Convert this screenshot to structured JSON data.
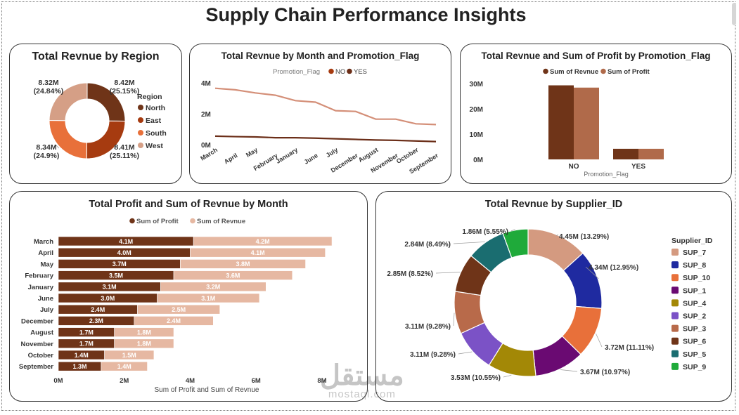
{
  "page": {
    "title": "Supply Chain Performance Insights"
  },
  "colors": {
    "dark": "#6f3418",
    "mid": "#a63b10",
    "orange": "#e8703a",
    "peach": "#d59f86",
    "light": "#e6b8a2",
    "line_no": "#d48f78",
    "line_yes": "#6b2e18"
  },
  "chart_data": [
    {
      "id": "region_donut",
      "type": "pie",
      "title": "Total Revnue by Region",
      "legend_title": "Region",
      "legend_position": "right",
      "labels": [
        "North",
        "East",
        "South",
        "West"
      ],
      "values": [
        8.42,
        8.41,
        8.34,
        8.32
      ],
      "data_labels": [
        "8.42M (25.15%)",
        "8.41M (25.11%)",
        "8.34M (24.9%)",
        "8.32M (24.84%)"
      ],
      "colors": [
        "#6f3418",
        "#a63b10",
        "#e8703a",
        "#d59f86"
      ]
    },
    {
      "id": "month_promo_line",
      "type": "line",
      "title": "Total Revnue by Month and Promotion_Flag",
      "legend_title": "Promotion_Flag",
      "legend_position": "top",
      "categories": [
        "March",
        "April",
        "May",
        "February",
        "January",
        "June",
        "July",
        "December",
        "August",
        "November",
        "October",
        "September"
      ],
      "series": [
        {
          "name": "NO",
          "color": "#d48f78",
          "values": [
            3.65,
            3.55,
            3.35,
            3.2,
            2.85,
            2.75,
            2.2,
            2.15,
            1.65,
            1.65,
            1.35,
            1.3
          ]
        },
        {
          "name": "YES",
          "color": "#6b2e18",
          "values": [
            0.55,
            0.52,
            0.5,
            0.45,
            0.45,
            0.42,
            0.38,
            0.34,
            0.3,
            0.28,
            0.24,
            0.2
          ]
        }
      ],
      "y_ticks": [
        "0M",
        "2M",
        "4M"
      ],
      "ylim": [
        0,
        4
      ],
      "y_tick_values": [
        0,
        2,
        4
      ]
    },
    {
      "id": "promo_bar",
      "type": "bar",
      "title": "Total Revnue and Sum of Profit by Promotion_Flag",
      "legend_position": "top",
      "categories": [
        "NO",
        "YES"
      ],
      "xlabel": "Promotion_Flag",
      "series": [
        {
          "name": "Sum of Revnue",
          "color": "#6f3418",
          "values": [
            29.3,
            4.2
          ]
        },
        {
          "name": "Sum of Profit",
          "color": "#b06a4a",
          "values": [
            28.4,
            4.2
          ]
        }
      ],
      "y_ticks": [
        "0M",
        "10M",
        "20M",
        "30M"
      ],
      "ylim": [
        0,
        30
      ],
      "y_tick_values": [
        0,
        10,
        20,
        30
      ]
    },
    {
      "id": "month_hbar",
      "type": "bar",
      "orientation": "horizontal",
      "stacked": true,
      "title": "Total Profit and Sum of Revnue by Month",
      "xlabel": "Sum of Profit and Sum of Revnue",
      "legend_position": "top",
      "categories": [
        "March",
        "April",
        "May",
        "February",
        "January",
        "June",
        "July",
        "December",
        "August",
        "November",
        "October",
        "September"
      ],
      "series": [
        {
          "name": "Sum of Profit",
          "color": "#6f3418",
          "values": [
            4.1,
            4.0,
            3.7,
            3.5,
            3.1,
            3.0,
            2.4,
            2.3,
            1.7,
            1.7,
            1.4,
            1.3
          ],
          "labels": [
            "4.1M",
            "4.0M",
            "3.7M",
            "3.5M",
            "3.1M",
            "3.0M",
            "2.4M",
            "2.3M",
            "1.7M",
            "1.7M",
            "1.4M",
            "1.3M"
          ]
        },
        {
          "name": "Sum of Revnue",
          "color": "#e6b8a2",
          "values": [
            4.2,
            4.1,
            3.8,
            3.6,
            3.2,
            3.1,
            2.5,
            2.4,
            1.8,
            1.8,
            1.5,
            1.4
          ],
          "labels": [
            "4.2M",
            "4.1M",
            "3.8M",
            "3.6M",
            "3.2M",
            "3.1M",
            "2.5M",
            "2.4M",
            "1.8M",
            "1.8M",
            "1.5M",
            "1.4M"
          ]
        }
      ],
      "x_ticks": [
        "0M",
        "2M",
        "4M",
        "6M",
        "8M"
      ],
      "xlim": [
        0,
        8
      ],
      "x_tick_values": [
        0,
        2,
        4,
        6,
        8
      ]
    },
    {
      "id": "supplier_donut",
      "type": "pie",
      "title": "Total Revnue by Supplier_ID",
      "legend_title": "Supplier_ID",
      "legend_position": "right",
      "labels": [
        "SUP_7",
        "SUP_8",
        "SUP_10",
        "SUP_1",
        "SUP_4",
        "SUP_2",
        "SUP_3",
        "SUP_6",
        "SUP_5",
        "SUP_9"
      ],
      "values": [
        4.45,
        4.34,
        3.72,
        3.67,
        3.53,
        3.11,
        3.11,
        2.85,
        2.84,
        1.86
      ],
      "data_labels": [
        "4.45M (13.29%)",
        "4.34M (12.95%)",
        "3.72M (11.11%)",
        "3.67M (10.97%)",
        "3.53M (10.55%)",
        "3.11M (9.28%)",
        "3.11M (9.28%)",
        "2.85M (8.52%)",
        "2.84M (8.49%)",
        "1.86M (5.55%)"
      ],
      "colors": [
        "#d49a80",
        "#1f2aa0",
        "#e8703a",
        "#6a0a72",
        "#a38806",
        "#7b52c6",
        "#b86a4a",
        "#6f3418",
        "#1a6d70",
        "#1faa3a"
      ]
    }
  ],
  "watermark": {
    "arabic": "مستقل",
    "latin": "mostaql.com"
  }
}
